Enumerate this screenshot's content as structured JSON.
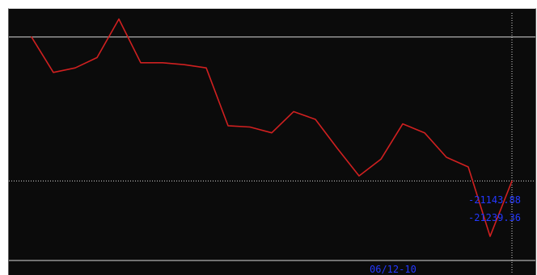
{
  "title": "",
  "colors": {
    "background": "#0b0b0b",
    "series": "#d02020",
    "gridline": "#d9d9d9",
    "crosshair": "#d9d9d9",
    "label": "#2438ff"
  },
  "cursor": {
    "date_label": "06/12-10",
    "value_label": "-21143.88",
    "second_value_label": "-21239.36"
  },
  "chart_data": {
    "type": "line",
    "title": "",
    "xlabel": "",
    "ylabel": "",
    "grid": "off",
    "legend": "none",
    "x": [
      1,
      2,
      3,
      4,
      5,
      6,
      7,
      8,
      9,
      10,
      11,
      12,
      13,
      14,
      15,
      16,
      17,
      18,
      19,
      20,
      21,
      22,
      23
    ],
    "series": [
      {
        "values": [
          -20920,
          -20975,
          -20968,
          -20952,
          -20892,
          -20960,
          -20960,
          -20963,
          -20968,
          -21058,
          -21060,
          -21069,
          -21036,
          -21048,
          -21093,
          -21136,
          -21110,
          -21055,
          -21069,
          -21107,
          -21122,
          -21230,
          -21144
        ]
      }
    ],
    "reference_lines": [
      -20920,
      -21143.88,
      -21239.36
    ],
    "cursor_x": 23,
    "xlim": [
      0,
      24
    ],
    "ylim": [
      -21270,
      -20880
    ]
  }
}
